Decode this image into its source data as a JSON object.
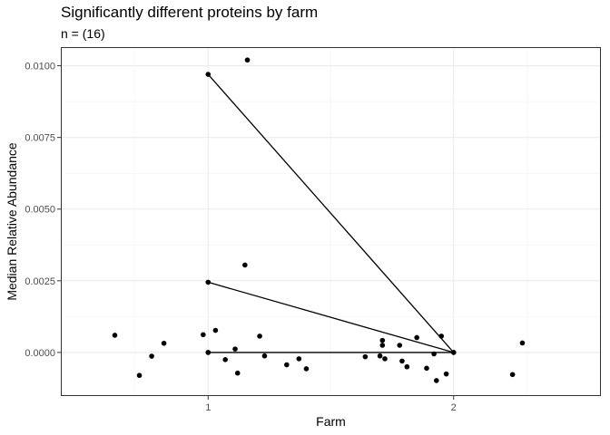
{
  "chart_data": {
    "type": "scatter",
    "title": "Significantly different proteins by farm",
    "subtitle": "n = (16)",
    "xlabel": "Farm",
    "ylabel": "Median Relative Abundance",
    "xlim": [
      0.4,
      2.6
    ],
    "ylim": [
      -0.00152,
      0.01065
    ],
    "x_ticks": [
      1,
      2
    ],
    "x_tick_labels": [
      "1",
      "2"
    ],
    "y_ticks": [
      0,
      0.0025,
      0.005,
      0.0075,
      0.01
    ],
    "y_tick_labels": [
      "0.0000",
      "0.0025",
      "0.0050",
      "0.0075",
      "0.0100"
    ],
    "grid": true,
    "points": [
      {
        "x": 0.62,
        "y": 0.0006
      },
      {
        "x": 0.72,
        "y": -0.0008
      },
      {
        "x": 0.77,
        "y": -0.00013
      },
      {
        "x": 0.82,
        "y": 0.00032
      },
      {
        "x": 0.98,
        "y": 0.00062
      },
      {
        "x": 1.0,
        "y": 0.0097
      },
      {
        "x": 1.0,
        "y": 0.00245
      },
      {
        "x": 1.0,
        "y": 0.0
      },
      {
        "x": 1.0,
        "y": 0.0
      },
      {
        "x": 1.03,
        "y": 0.00077
      },
      {
        "x": 1.07,
        "y": -0.00025
      },
      {
        "x": 1.11,
        "y": 0.00012
      },
      {
        "x": 1.12,
        "y": -0.00072
      },
      {
        "x": 1.15,
        "y": 0.00305
      },
      {
        "x": 1.16,
        "y": 0.0102
      },
      {
        "x": 1.21,
        "y": 0.00057
      },
      {
        "x": 1.23,
        "y": -0.00012
      },
      {
        "x": 1.32,
        "y": -0.00043
      },
      {
        "x": 1.37,
        "y": -0.00022
      },
      {
        "x": 1.4,
        "y": -0.00057
      },
      {
        "x": 1.64,
        "y": -0.00015
      },
      {
        "x": 1.7,
        "y": -0.00012
      },
      {
        "x": 1.71,
        "y": 0.00025
      },
      {
        "x": 1.71,
        "y": 0.00042
      },
      {
        "x": 1.72,
        "y": -0.00022
      },
      {
        "x": 1.78,
        "y": 0.00025
      },
      {
        "x": 1.79,
        "y": -0.0003
      },
      {
        "x": 1.81,
        "y": -0.0005
      },
      {
        "x": 1.85,
        "y": 0.00052
      },
      {
        "x": 1.89,
        "y": -0.00055
      },
      {
        "x": 1.92,
        "y": -5e-05
      },
      {
        "x": 1.93,
        "y": -0.00098
      },
      {
        "x": 1.95,
        "y": 0.00057
      },
      {
        "x": 1.97,
        "y": -0.00075
      },
      {
        "x": 2.0,
        "y": 0.0
      },
      {
        "x": 2.0,
        "y": 0.0
      },
      {
        "x": 2.24,
        "y": -0.00077
      },
      {
        "x": 2.28,
        "y": 0.00033
      }
    ],
    "segments": [
      {
        "x": [
          1,
          2
        ],
        "y": [
          0.0097,
          0.0
        ]
      },
      {
        "x": [
          1,
          2
        ],
        "y": [
          0.00245,
          0.0
        ]
      },
      {
        "x": [
          1,
          2
        ],
        "y": [
          0.0,
          0.0
        ]
      }
    ]
  }
}
